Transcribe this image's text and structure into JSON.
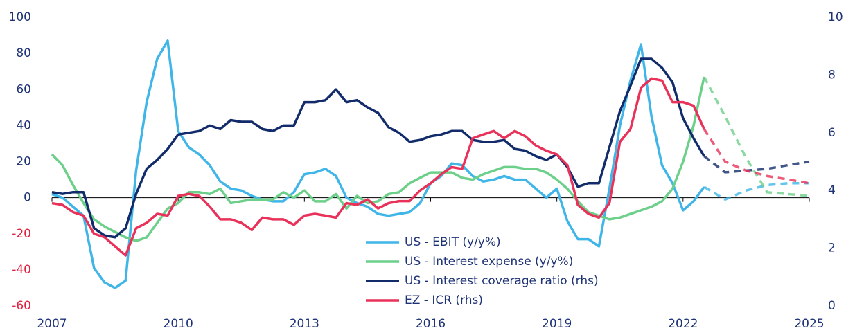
{
  "chart_data": {
    "type": "line",
    "x": [
      2007,
      2007.25,
      2007.5,
      2007.75,
      2008,
      2008.25,
      2008.5,
      2008.75,
      2009,
      2009.25,
      2009.5,
      2009.75,
      2010,
      2010.25,
      2010.5,
      2010.75,
      2011,
      2011.25,
      2011.5,
      2011.75,
      2012,
      2012.25,
      2012.5,
      2012.75,
      2013,
      2013.25,
      2013.5,
      2013.75,
      2014,
      2014.25,
      2014.5,
      2014.75,
      2015,
      2015.25,
      2015.5,
      2015.75,
      2016,
      2016.25,
      2016.5,
      2016.75,
      2017,
      2017.25,
      2017.5,
      2017.75,
      2018,
      2018.25,
      2018.5,
      2018.75,
      2019,
      2019.25,
      2019.5,
      2019.75,
      2020,
      2020.25,
      2020.5,
      2020.75,
      2021,
      2021.25,
      2021.5,
      2021.75,
      2022,
      2022.25,
      2022.5,
      2023,
      2023.5,
      2024,
      2024.5,
      2025
    ],
    "forecast_from": 2022.5,
    "series": [
      {
        "name": "US - EBIT (y/y%)",
        "color": "#3fb5e8",
        "values": [
          2,
          0,
          -5,
          -10,
          -39,
          -47,
          -50,
          -46,
          15,
          53,
          77,
          87,
          37,
          28,
          24,
          18,
          9,
          5,
          4,
          1,
          -1,
          -2,
          -2,
          3,
          13,
          14,
          16,
          12,
          0,
          -3,
          -5,
          -9,
          -10,
          -9,
          -8,
          -3,
          8,
          12,
          19,
          18,
          12,
          9,
          10,
          12,
          10,
          10,
          5,
          0,
          5,
          -13,
          -23,
          -23,
          -27,
          5,
          40,
          65,
          85,
          45,
          18,
          8,
          -7,
          -2,
          6,
          -1,
          4,
          7,
          8,
          8
        ]
      },
      {
        "name": "US - Interest expense (y/y%)",
        "color": "#6ccf8a",
        "values": [
          24,
          18,
          7,
          -3,
          -12,
          -16,
          -19,
          -22,
          -24,
          -22,
          -14,
          -6,
          -3,
          3,
          3,
          2,
          5,
          -3,
          -2,
          -1,
          -1,
          -1,
          3,
          0,
          4,
          -2,
          -2,
          2,
          -6,
          1,
          -3,
          -2,
          2,
          3,
          8,
          11,
          14,
          14,
          14,
          11,
          10,
          13,
          15,
          17,
          17,
          16,
          16,
          14,
          10,
          5,
          -2,
          -8,
          -10,
          -12,
          -11,
          -9,
          -7,
          -5,
          -2,
          5,
          20,
          40,
          67,
          45,
          22,
          3,
          2,
          1
        ]
      },
      {
        "name": "US - Interest coverage ratio (rhs)",
        "color": "#122b6b",
        "axis": "y2",
        "values": [
          3.94,
          3.88,
          3.94,
          3.94,
          2.69,
          2.44,
          2.38,
          2.69,
          3.88,
          4.75,
          5.06,
          5.44,
          5.94,
          6.0,
          6.06,
          6.25,
          6.13,
          6.44,
          6.38,
          6.38,
          6.13,
          6.06,
          6.25,
          6.25,
          7.06,
          7.06,
          7.13,
          7.5,
          7.06,
          7.13,
          6.88,
          6.69,
          6.19,
          6.0,
          5.69,
          5.75,
          5.88,
          5.94,
          6.06,
          6.06,
          5.75,
          5.69,
          5.69,
          5.75,
          5.44,
          5.38,
          5.19,
          5.06,
          5.25,
          4.81,
          4.13,
          4.25,
          4.25,
          5.5,
          6.75,
          7.63,
          8.56,
          8.56,
          8.25,
          7.75,
          6.5,
          5.81,
          5.19,
          4.63,
          4.69,
          4.75,
          4.88,
          5.0
        ]
      },
      {
        "name": "EZ - ICR (rhs)",
        "color": "#e8325a",
        "axis": "y2",
        "values": [
          3.56,
          3.5,
          3.25,
          3.13,
          2.5,
          2.38,
          2.06,
          1.75,
          2.69,
          2.88,
          3.19,
          3.13,
          3.81,
          3.88,
          3.81,
          3.44,
          3.0,
          3.0,
          2.88,
          2.63,
          3.06,
          3.0,
          3.0,
          2.81,
          3.13,
          3.19,
          3.13,
          3.06,
          3.56,
          3.5,
          3.69,
          3.38,
          3.56,
          3.63,
          3.63,
          4.0,
          4.25,
          4.56,
          4.81,
          4.75,
          5.81,
          5.94,
          6.06,
          5.81,
          6.06,
          5.88,
          5.56,
          5.38,
          5.25,
          4.88,
          3.5,
          3.19,
          3.06,
          3.56,
          5.69,
          6.13,
          7.56,
          7.88,
          7.81,
          7.06,
          7.06,
          6.94,
          6.13,
          5.0,
          4.69,
          4.5,
          4.38,
          4.25
        ]
      }
    ],
    "xlim": [
      2007,
      2025
    ],
    "xticks": [
      2007,
      2010,
      2013,
      2016,
      2019,
      2022,
      2025
    ],
    "ylim": [
      -60,
      100
    ],
    "yticks": [
      -60,
      -40,
      -20,
      0,
      20,
      40,
      60,
      80,
      100
    ],
    "y2lim": [
      0,
      10
    ],
    "y2ticks": [
      0,
      2,
      4,
      6,
      8,
      10
    ]
  }
}
